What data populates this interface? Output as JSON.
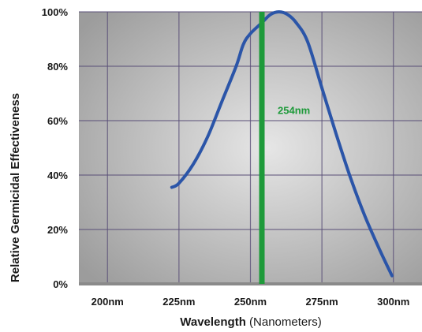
{
  "chart_data": {
    "type": "line",
    "xlabel": "Wavelength",
    "xlabel_unit": "(Nanometers)",
    "ylabel": "Relative Germicidal Effectiveness",
    "xlim": [
      190,
      310
    ],
    "ylim": [
      0,
      100
    ],
    "grid": true,
    "x_ticks": [
      {
        "value": 200,
        "label": "200nm"
      },
      {
        "value": 225,
        "label": "225nm"
      },
      {
        "value": 250,
        "label": "250nm"
      },
      {
        "value": 275,
        "label": "275nm"
      },
      {
        "value": 300,
        "label": "300nm"
      }
    ],
    "y_ticks": [
      {
        "value": 0,
        "label": "0%"
      },
      {
        "value": 20,
        "label": "20%"
      },
      {
        "value": 40,
        "label": "40%"
      },
      {
        "value": 60,
        "label": "60%"
      },
      {
        "value": 80,
        "label": "80%"
      },
      {
        "value": 100,
        "label": "100%"
      }
    ],
    "series": [
      {
        "color": "#2b55a8",
        "points": [
          {
            "x": 222.5,
            "y": 35.5
          },
          {
            "x": 225,
            "y": 37
          },
          {
            "x": 230,
            "y": 44
          },
          {
            "x": 235,
            "y": 54
          },
          {
            "x": 240,
            "y": 67
          },
          {
            "x": 245,
            "y": 80
          },
          {
            "x": 247.5,
            "y": 88
          },
          {
            "x": 250,
            "y": 92
          },
          {
            "x": 254,
            "y": 96
          },
          {
            "x": 257,
            "y": 99
          },
          {
            "x": 260,
            "y": 100
          },
          {
            "x": 263,
            "y": 99
          },
          {
            "x": 266,
            "y": 96
          },
          {
            "x": 270,
            "y": 89
          },
          {
            "x": 275,
            "y": 72
          },
          {
            "x": 280,
            "y": 55
          },
          {
            "x": 285,
            "y": 39
          },
          {
            "x": 290,
            "y": 25
          },
          {
            "x": 295,
            "y": 13
          },
          {
            "x": 299.5,
            "y": 3
          }
        ]
      }
    ],
    "marker": {
      "x": 254,
      "label": "254nm",
      "color": "#1e9a3a"
    },
    "colors": {
      "plot_bg_center": "#e2e2e2",
      "plot_bg_edge": "#9a9a9a",
      "grid": "#5a4f78"
    }
  }
}
